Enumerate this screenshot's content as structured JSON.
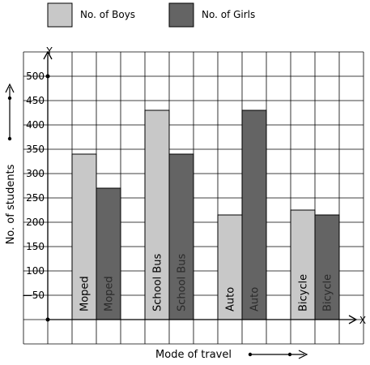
{
  "chart_data": {
    "type": "bar",
    "xlabel": "Mode of travel",
    "ylabel": "No. of students",
    "y_axis_letter": "Y",
    "x_axis_letter": "X",
    "ylim": [
      -50,
      550
    ],
    "y_ticks": [
      {
        "value": 500,
        "label": "500"
      },
      {
        "value": 450,
        "label": "450"
      },
      {
        "value": 400,
        "label": "400"
      },
      {
        "value": 350,
        "label": "350"
      },
      {
        "value": 300,
        "label": "300"
      },
      {
        "value": 250,
        "label": "250"
      },
      {
        "value": 200,
        "label": "200"
      },
      {
        "value": 150,
        "label": "150"
      },
      {
        "value": 100,
        "label": "100"
      },
      {
        "value": 50,
        "label": "—50"
      }
    ],
    "grid": true,
    "legend_position": "top",
    "categories": [
      "Moped",
      "School Bus",
      "Auto",
      "Bicycle"
    ],
    "series": [
      {
        "name": "No. of Boys",
        "color": "#c8c8c8",
        "values": [
          340,
          430,
          215,
          225
        ]
      },
      {
        "name": "No. of Girls",
        "color": "#646464",
        "values": [
          270,
          340,
          430,
          215
        ]
      }
    ]
  }
}
